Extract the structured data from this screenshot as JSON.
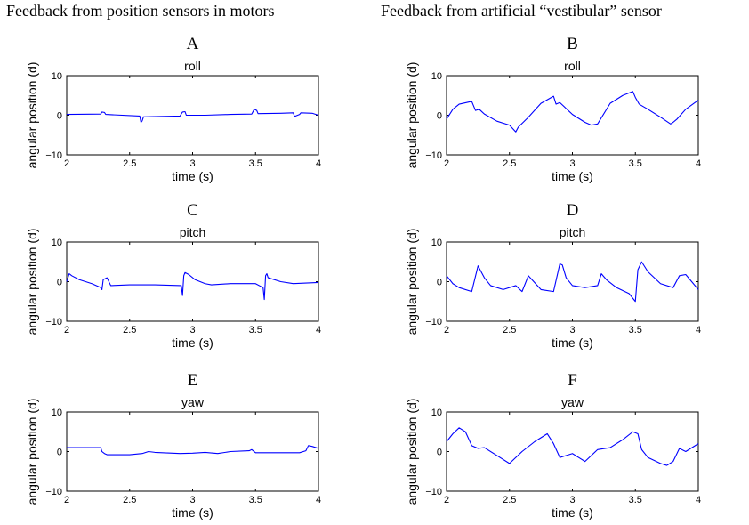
{
  "column_titles": {
    "left": "Feedback from position sensors in motors",
    "right": "Feedback from artificial “vestibular” sensor"
  },
  "line_color": "#0000ff",
  "chart_data": [
    {
      "id": "A",
      "label": "A",
      "type": "line",
      "title": "roll",
      "xlabel": "time (s)",
      "ylabel": "angular position (d)",
      "xlim": [
        2,
        4
      ],
      "ylim": [
        -10,
        10
      ],
      "xticks": [
        2,
        2.5,
        3,
        3.5,
        4
      ],
      "yticks": [
        -10,
        0,
        10
      ],
      "series": [
        {
          "x": [
            2.0,
            2.27,
            2.28,
            2.3,
            2.31,
            2.58,
            2.59,
            2.6,
            2.61,
            2.9,
            2.92,
            2.94,
            2.95,
            3.1,
            3.3,
            3.47,
            3.49,
            3.51,
            3.52,
            3.7,
            3.8,
            3.81,
            3.85,
            3.86,
            3.95,
            4.0
          ],
          "y": [
            0.2,
            0.3,
            0.8,
            0.7,
            0.2,
            -0.2,
            -1.8,
            -1.4,
            -0.4,
            -0.2,
            0.8,
            0.9,
            0.0,
            0.0,
            0.2,
            0.3,
            1.5,
            1.2,
            0.4,
            0.5,
            0.6,
            -0.3,
            0.2,
            0.6,
            0.5,
            0.0
          ]
        }
      ]
    },
    {
      "id": "B",
      "label": "B",
      "type": "line",
      "title": "roll",
      "xlabel": "time (s)",
      "ylabel": "angular position (d)",
      "xlim": [
        2,
        4
      ],
      "ylim": [
        -10,
        10
      ],
      "xticks": [
        2,
        2.5,
        3,
        3.5,
        4
      ],
      "yticks": [
        -10,
        0,
        10
      ],
      "series": [
        {
          "x": [
            2.0,
            2.05,
            2.1,
            2.2,
            2.23,
            2.26,
            2.3,
            2.4,
            2.5,
            2.55,
            2.57,
            2.65,
            2.75,
            2.85,
            2.87,
            2.9,
            3.0,
            3.1,
            3.15,
            3.2,
            3.3,
            3.4,
            3.48,
            3.5,
            3.53,
            3.6,
            3.7,
            3.78,
            3.8,
            3.83,
            3.9,
            4.0
          ],
          "y": [
            -1.0,
            1.5,
            2.8,
            3.5,
            1.2,
            1.5,
            0.3,
            -1.5,
            -2.5,
            -4.2,
            -3.0,
            -0.5,
            3.0,
            4.8,
            2.8,
            3.2,
            0.2,
            -1.8,
            -2.5,
            -2.2,
            3.0,
            5.0,
            6.0,
            4.5,
            2.8,
            1.5,
            -0.5,
            -2.2,
            -1.8,
            -1.0,
            1.5,
            3.8
          ]
        }
      ]
    },
    {
      "id": "C",
      "label": "C",
      "type": "line",
      "title": "pitch",
      "xlabel": "time (s)",
      "ylabel": "angular position (d)",
      "xlim": [
        2,
        4
      ],
      "ylim": [
        -10,
        10
      ],
      "xticks": [
        2,
        2.5,
        3,
        3.5,
        4
      ],
      "yticks": [
        -10,
        0,
        10
      ],
      "series": [
        {
          "x": [
            2.0,
            2.02,
            2.04,
            2.1,
            2.2,
            2.27,
            2.28,
            2.29,
            2.32,
            2.35,
            2.5,
            2.7,
            2.91,
            2.92,
            2.93,
            2.94,
            2.97,
            3.02,
            3.1,
            3.15,
            3.3,
            3.5,
            3.56,
            3.57,
            3.58,
            3.59,
            3.6,
            3.7,
            3.8,
            4.0
          ],
          "y": [
            0.0,
            2.0,
            1.5,
            0.5,
            -0.5,
            -1.5,
            -2.0,
            0.5,
            1.0,
            -1.0,
            -0.8,
            -0.8,
            -1.0,
            -3.5,
            1.5,
            2.3,
            1.8,
            0.5,
            -0.5,
            -0.8,
            -0.5,
            -0.5,
            -1.5,
            -4.5,
            1.5,
            2.0,
            1.0,
            0.0,
            -0.5,
            -0.2
          ]
        }
      ]
    },
    {
      "id": "D",
      "label": "D",
      "type": "line",
      "title": "pitch",
      "xlabel": "time (s)",
      "ylabel": "angular position (d)",
      "xlim": [
        2,
        4
      ],
      "ylim": [
        -10,
        10
      ],
      "xticks": [
        2,
        2.5,
        3,
        3.5,
        4
      ],
      "yticks": [
        -10,
        0,
        10
      ],
      "series": [
        {
          "x": [
            2.0,
            2.05,
            2.1,
            2.2,
            2.25,
            2.3,
            2.35,
            2.45,
            2.55,
            2.6,
            2.65,
            2.75,
            2.85,
            2.9,
            2.92,
            2.95,
            3.0,
            3.1,
            3.2,
            3.23,
            3.27,
            3.35,
            3.45,
            3.5,
            3.52,
            3.55,
            3.6,
            3.7,
            3.8,
            3.85,
            3.9,
            4.0
          ],
          "y": [
            1.5,
            -0.5,
            -1.5,
            -2.5,
            4.0,
            1.0,
            -1.0,
            -2.0,
            -1.0,
            -2.5,
            1.5,
            -2.0,
            -2.5,
            4.5,
            4.2,
            1.0,
            -1.0,
            -1.5,
            -1.0,
            2.0,
            0.5,
            -1.5,
            -3.0,
            -5.0,
            3.0,
            5.0,
            2.5,
            -0.5,
            -1.5,
            1.5,
            1.8,
            -2.0
          ]
        }
      ]
    },
    {
      "id": "E",
      "label": "E",
      "type": "line",
      "title": "yaw",
      "xlabel": "time (s)",
      "ylabel": "angular position (d)",
      "xlim": [
        2,
        4
      ],
      "ylim": [
        -10,
        10
      ],
      "xticks": [
        2,
        2.5,
        3,
        3.5,
        4
      ],
      "yticks": [
        -10,
        0,
        10
      ],
      "series": [
        {
          "x": [
            2.0,
            2.27,
            2.28,
            2.3,
            2.32,
            2.5,
            2.6,
            2.65,
            2.7,
            2.9,
            3.0,
            3.1,
            3.2,
            3.3,
            3.45,
            3.47,
            3.5,
            3.85,
            3.9,
            3.92,
            3.95,
            4.0
          ],
          "y": [
            1.0,
            1.0,
            0.0,
            -0.5,
            -0.8,
            -0.8,
            -0.5,
            0.0,
            -0.2,
            -0.5,
            -0.4,
            -0.2,
            -0.5,
            0.0,
            0.2,
            0.5,
            -0.3,
            -0.3,
            0.2,
            1.5,
            1.3,
            0.8
          ]
        }
      ]
    },
    {
      "id": "F",
      "label": "F",
      "type": "line",
      "title": "yaw",
      "xlabel": "time (s)",
      "ylabel": "angular position (d)",
      "xlim": [
        2,
        4
      ],
      "ylim": [
        -10,
        10
      ],
      "xticks": [
        2,
        2.5,
        3,
        3.5,
        4
      ],
      "yticks": [
        -10,
        0,
        10
      ],
      "series": [
        {
          "x": [
            2.0,
            2.05,
            2.1,
            2.15,
            2.2,
            2.25,
            2.3,
            2.4,
            2.5,
            2.6,
            2.7,
            2.8,
            2.85,
            2.9,
            3.0,
            3.05,
            3.1,
            3.2,
            3.3,
            3.4,
            3.48,
            3.52,
            3.55,
            3.6,
            3.7,
            3.75,
            3.8,
            3.85,
            3.9,
            4.0
          ],
          "y": [
            2.5,
            4.5,
            6.0,
            5.0,
            1.5,
            0.8,
            1.0,
            -1.0,
            -3.0,
            0.0,
            2.5,
            4.5,
            2.0,
            -1.5,
            -0.5,
            -1.5,
            -2.5,
            0.5,
            1.0,
            3.0,
            5.0,
            4.5,
            0.5,
            -1.5,
            -3.0,
            -3.5,
            -2.5,
            0.8,
            0.0,
            2.0
          ]
        }
      ]
    }
  ]
}
